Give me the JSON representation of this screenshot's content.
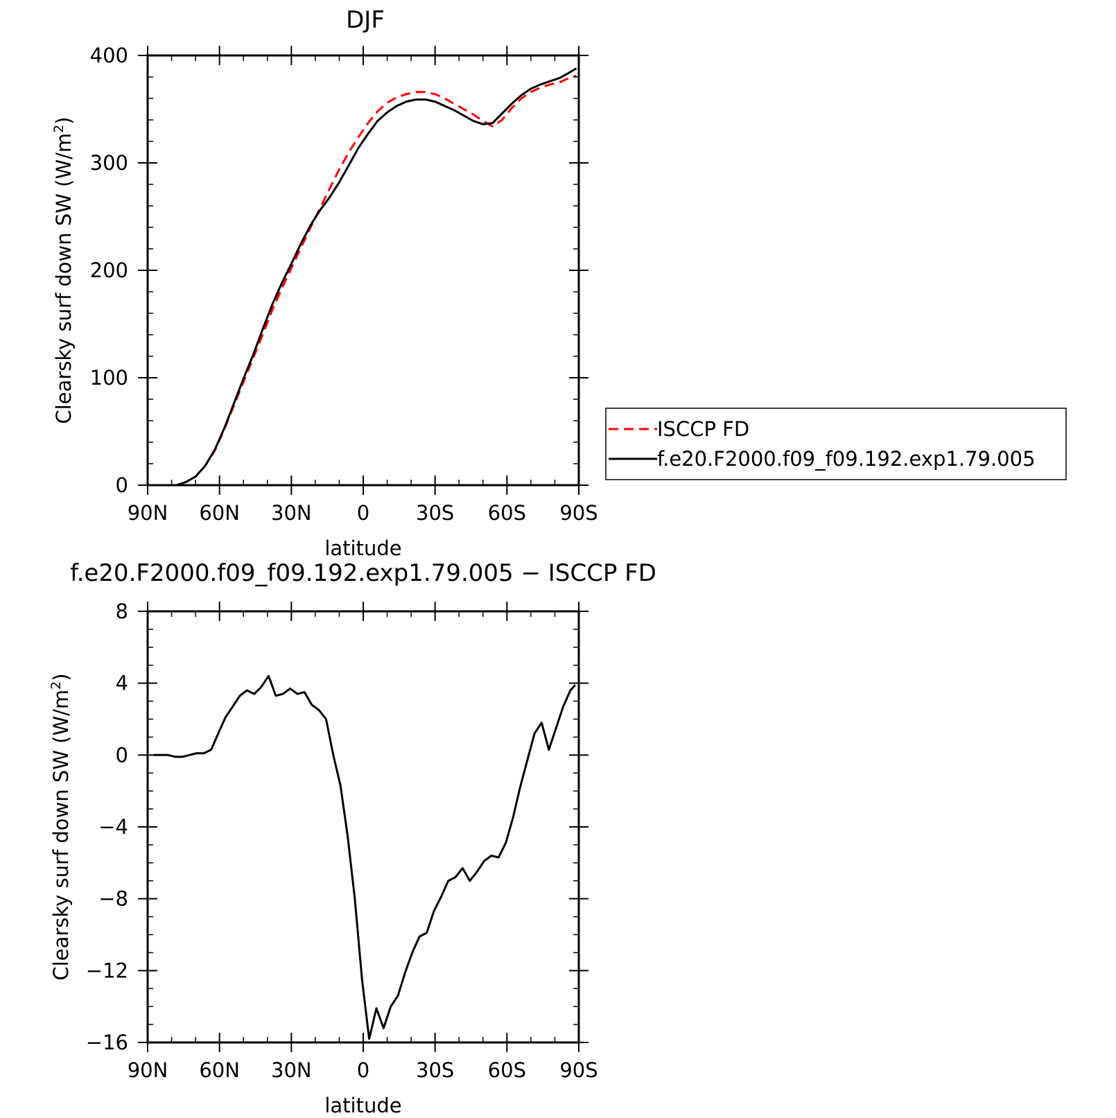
{
  "chart_data": [
    {
      "type": "line",
      "title": "DJF",
      "xlabel": "latitude",
      "ylabel": "Clearsky surf down SW (W/m",
      "ylabel_superscript": "2",
      "ylabel_suffix": ")",
      "xlim": [
        90,
        -90
      ],
      "ylim": [
        0,
        400
      ],
      "xticks": [
        {
          "value": 90,
          "label": "90N"
        },
        {
          "value": 60,
          "label": "60N"
        },
        {
          "value": 30,
          "label": "30N"
        },
        {
          "value": 0,
          "label": "0"
        },
        {
          "value": -30,
          "label": "30S"
        },
        {
          "value": -60,
          "label": "60S"
        },
        {
          "value": -90,
          "label": "90S"
        }
      ],
      "yticks": [
        {
          "value": 0,
          "label": "0"
        },
        {
          "value": 100,
          "label": "100"
        },
        {
          "value": 200,
          "label": "200"
        },
        {
          "value": 300,
          "label": "300"
        },
        {
          "value": 400,
          "label": "400"
        }
      ],
      "grid": false,
      "legend": {
        "placement": "right",
        "entries": [
          {
            "label": "ISCCP FD",
            "color": "#ff0000",
            "style": "dashed"
          },
          {
            "label": "f.e20.F2000.f09_f09.192.exp1.79.005",
            "color": "#000000",
            "style": "solid"
          }
        ]
      },
      "series": [
        {
          "name": "ISCCP FD",
          "color": "#ff0000",
          "style": "dashed",
          "x": [
            90,
            86,
            82,
            78,
            74,
            70,
            66,
            62,
            58,
            54,
            50,
            46,
            42,
            38,
            34,
            30,
            26,
            22,
            18,
            14,
            10,
            6,
            2,
            -2,
            -6,
            -10,
            -14,
            -18,
            -22,
            -26,
            -30,
            -34,
            -38,
            -42,
            -46,
            -50,
            -54,
            -58,
            -62,
            -66,
            -70,
            -74,
            -78,
            -82,
            -86,
            -89
          ],
          "y": [
            0,
            0,
            0,
            0,
            3,
            8,
            18,
            32,
            52,
            74,
            96,
            118,
            140,
            163,
            183,
            202,
            221,
            240,
            258,
            276,
            294,
            310,
            324,
            337,
            348,
            356,
            361,
            364,
            366,
            366,
            364,
            360,
            355,
            350,
            345,
            339,
            334,
            340,
            351,
            360,
            366,
            370,
            373,
            375,
            379,
            381
          ]
        },
        {
          "name": "f.e20.F2000.f09_f09.192.exp1.79.005",
          "color": "#000000",
          "style": "solid",
          "x": [
            90,
            86,
            82,
            78,
            74,
            70,
            66,
            62,
            58,
            54,
            50,
            46,
            42,
            38,
            34,
            30,
            26,
            22,
            18,
            14,
            10,
            6,
            2,
            -2,
            -6,
            -10,
            -14,
            -18,
            -22,
            -26,
            -30,
            -34,
            -38,
            -42,
            -46,
            -50,
            -54,
            -58,
            -62,
            -66,
            -70,
            -74,
            -78,
            -82,
            -86,
            -89
          ],
          "y": [
            0,
            0,
            0,
            0,
            3,
            8,
            18,
            33,
            53,
            76,
            99,
            121,
            145,
            168,
            188,
            206,
            225,
            242,
            256,
            268,
            282,
            298,
            314,
            327,
            339,
            347,
            353,
            357,
            359,
            359,
            357,
            353,
            349,
            344,
            339,
            336,
            337,
            346,
            355,
            363,
            369,
            373,
            376,
            379,
            384,
            388
          ]
        }
      ]
    },
    {
      "type": "line",
      "title": "f.e20.F2000.f09_f09.192.exp1.79.005 − ISCCP FD",
      "xlabel": "latitude",
      "ylabel": "Clearsky surf down SW (W/m",
      "ylabel_superscript": "2",
      "ylabel_suffix": ")",
      "xlim": [
        90,
        -90
      ],
      "ylim": [
        -16,
        8
      ],
      "xticks": [
        {
          "value": 90,
          "label": "90N"
        },
        {
          "value": 60,
          "label": "60N"
        },
        {
          "value": 30,
          "label": "30N"
        },
        {
          "value": 0,
          "label": "0"
        },
        {
          "value": -30,
          "label": "30S"
        },
        {
          "value": -60,
          "label": "60S"
        },
        {
          "value": -90,
          "label": "90S"
        }
      ],
      "yticks": [
        {
          "value": -16,
          "label": "−16"
        },
        {
          "value": -12,
          "label": "−12"
        },
        {
          "value": -8,
          "label": "−8"
        },
        {
          "value": -4,
          "label": "−4"
        },
        {
          "value": 0,
          "label": "0"
        },
        {
          "value": 4,
          "label": "4"
        },
        {
          "value": 8,
          "label": "8"
        }
      ],
      "grid": false,
      "series": [
        {
          "name": "",
          "color": "#000000",
          "style": "solid",
          "x": [
            87.5,
            84.5,
            81.5,
            78.5,
            75.5,
            72.5,
            69.5,
            66.5,
            63.5,
            60.5,
            57.5,
            54.5,
            51.5,
            48.5,
            45.5,
            42.5,
            39.5,
            36.5,
            33.5,
            30.5,
            27.5,
            24.5,
            21.5,
            18.5,
            15.5,
            12.5,
            9.5,
            6.5,
            3.5,
            0.5,
            -2.5,
            -5.5,
            -8.5,
            -11.5,
            -14.5,
            -17.5,
            -20.5,
            -23.5,
            -26.5,
            -29.5,
            -32.5,
            -35.5,
            -38.5,
            -41.5,
            -44.5,
            -47.5,
            -50.5,
            -53.5,
            -56.5,
            -59.5,
            -62.5,
            -65.5,
            -68.5,
            -71.5,
            -74.5,
            -77.5,
            -80.5,
            -83.5,
            -86.5,
            -88.5
          ],
          "y": [
            0,
            0,
            0,
            -0.1,
            -0.1,
            0,
            0.1,
            0.1,
            0.3,
            1.2,
            2.1,
            2.7,
            3.3,
            3.6,
            3.4,
            3.8,
            4.4,
            3.3,
            3.4,
            3.7,
            3.4,
            3.5,
            2.8,
            2.5,
            2.0,
            0,
            -1.7,
            -4.5,
            -8,
            -12.5,
            -15.8,
            -14.1,
            -15.2,
            -14.0,
            -13.4,
            -12.1,
            -11.0,
            -10.1,
            -9.9,
            -8.7,
            -7.9,
            -7.0,
            -6.8,
            -6.3,
            -7.0,
            -6.5,
            -5.9,
            -5.6,
            -5.7,
            -4.9,
            -3.5,
            -1.8,
            -0.3,
            1.2,
            1.8,
            0.3,
            1.5,
            2.7,
            3.6,
            3.9
          ]
        }
      ]
    }
  ]
}
